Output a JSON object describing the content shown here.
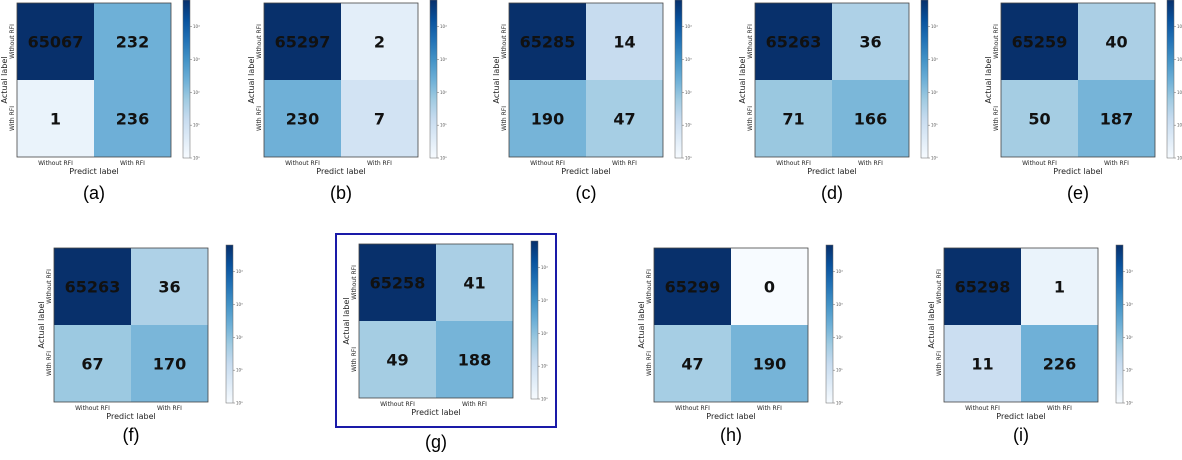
{
  "chart_data": [
    {
      "type": "heatmap",
      "panel": "(a)",
      "xlabel": "Predict label",
      "ylabel": "Actual label",
      "x_tick_labels": [
        "Without RFI",
        "With RFI"
      ],
      "y_tick_labels": [
        "Without RFI",
        "With RFI"
      ],
      "values": [
        [
          65067,
          232
        ],
        [
          1,
          236
        ]
      ]
    },
    {
      "type": "heatmap",
      "panel": "(b)",
      "xlabel": "Predict label",
      "ylabel": "Actual label",
      "x_tick_labels": [
        "Without RFI",
        "With RFI"
      ],
      "y_tick_labels": [
        "Without RFI",
        "With RFI"
      ],
      "values": [
        [
          65297,
          2
        ],
        [
          230,
          7
        ]
      ]
    },
    {
      "type": "heatmap",
      "panel": "(c)",
      "xlabel": "Predict label",
      "ylabel": "Actual label",
      "x_tick_labels": [
        "Without RFI",
        "With RFI"
      ],
      "y_tick_labels": [
        "Without RFI",
        "With RFI"
      ],
      "values": [
        [
          65285,
          14
        ],
        [
          190,
          47
        ]
      ]
    },
    {
      "type": "heatmap",
      "panel": "(d)",
      "xlabel": "Predict label",
      "ylabel": "Actual label",
      "x_tick_labels": [
        "Without RFI",
        "With RFI"
      ],
      "y_tick_labels": [
        "Without RFI",
        "With RFI"
      ],
      "values": [
        [
          65263,
          36
        ],
        [
          71,
          166
        ]
      ]
    },
    {
      "type": "heatmap",
      "panel": "(e)",
      "xlabel": "Predict label",
      "ylabel": "Actual label",
      "x_tick_labels": [
        "Without RFI",
        "With RFI"
      ],
      "y_tick_labels": [
        "Without RFI",
        "With RFI"
      ],
      "values": [
        [
          65259,
          40
        ],
        [
          50,
          187
        ]
      ]
    },
    {
      "type": "heatmap",
      "panel": "(f)",
      "xlabel": "Predict label",
      "ylabel": "Actual label",
      "x_tick_labels": [
        "Without RFI",
        "With RFI"
      ],
      "y_tick_labels": [
        "Without RFI",
        "With RFI"
      ],
      "values": [
        [
          65263,
          36
        ],
        [
          67,
          170
        ]
      ]
    },
    {
      "type": "heatmap",
      "panel": "(g)",
      "xlabel": "Predict label",
      "ylabel": "Actual label",
      "x_tick_labels": [
        "Without RFI",
        "With RFI"
      ],
      "y_tick_labels": [
        "Without RFI",
        "With RFI"
      ],
      "values": [
        [
          65258,
          41
        ],
        [
          49,
          188
        ]
      ],
      "highlighted": true
    },
    {
      "type": "heatmap",
      "panel": "(h)",
      "xlabel": "Predict label",
      "ylabel": "Actual label",
      "x_tick_labels": [
        "Without RFI",
        "With RFI"
      ],
      "y_tick_labels": [
        "Without RFI",
        "With RFI"
      ],
      "values": [
        [
          65299,
          0
        ],
        [
          47,
          190
        ]
      ]
    },
    {
      "type": "heatmap",
      "panel": "(i)",
      "xlabel": "Predict label",
      "ylabel": "Actual label",
      "x_tick_labels": [
        "Without RFI",
        "With RFI"
      ],
      "y_tick_labels": [
        "Without RFI",
        "With RFI"
      ],
      "values": [
        [
          65298,
          1
        ],
        [
          11,
          226
        ]
      ]
    }
  ],
  "colormap": "Blues",
  "colorbar_scale": "log",
  "colorbar_ticks": [
    "10⁰",
    "10¹",
    "10²",
    "10³",
    "10⁴"
  ],
  "colors": {
    "max": "#08306b",
    "min": "#f7fbff",
    "highlight_border": "#1a1aa8"
  }
}
